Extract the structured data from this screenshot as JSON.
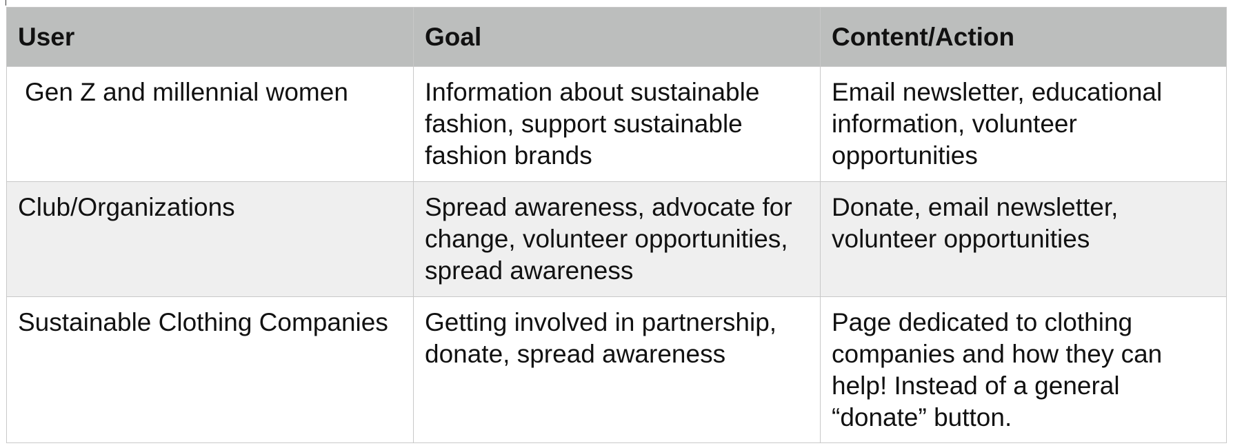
{
  "table": {
    "headers": [
      "User",
      "Goal",
      "Content/Action"
    ],
    "rows": [
      {
        "user": "Gen Z and millennial women",
        "goal": "Information about sustainable fashion, support sustainable fashion brands",
        "content_action": "Email newsletter, educational information, volunteer opportunities"
      },
      {
        "user": "Club/Organizations",
        "goal": "Spread awareness, advocate for change, volunteer opportunities, spread awareness",
        "content_action": "Donate, email newsletter, volunteer opportunities"
      },
      {
        "user": "Sustainable Clothing Companies",
        "goal": "Getting involved in partnership, donate, spread awareness",
        "content_action": "Page dedicated to clothing companies and how they can help! Instead of a general “donate” button."
      }
    ]
  },
  "colors": {
    "header_bg": "#bcbebd",
    "alt_row_bg": "#efefef",
    "border": "#c8c8c8"
  }
}
